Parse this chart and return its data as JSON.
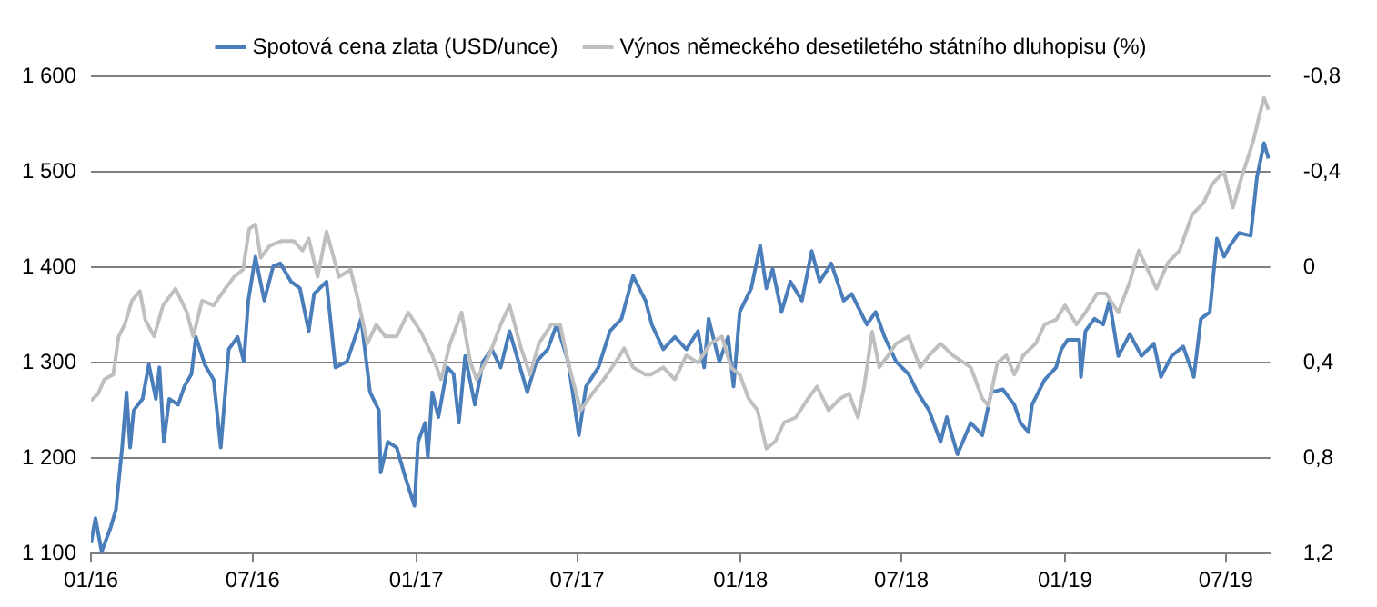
{
  "chart_data": {
    "type": "line",
    "legend": "top",
    "grid": "y",
    "xlim": [
      "2016-01-01",
      "2019-08-20"
    ],
    "xticks": [
      {
        "value": "2016-01-01",
        "label": "01/16"
      },
      {
        "value": "2016-07-01",
        "label": "07/16"
      },
      {
        "value": "2017-01-01",
        "label": "01/17"
      },
      {
        "value": "2017-07-01",
        "label": "07/17"
      },
      {
        "value": "2018-01-01",
        "label": "01/18"
      },
      {
        "value": "2018-07-01",
        "label": "07/18"
      },
      {
        "value": "2019-01-01",
        "label": "01/19"
      },
      {
        "value": "2019-07-01",
        "label": "07/19"
      }
    ],
    "ylim": [
      1100,
      1600
    ],
    "yticks": [
      {
        "value": 1100,
        "label": "1 100"
      },
      {
        "value": 1200,
        "label": "1 200"
      },
      {
        "value": 1300,
        "label": "1 300"
      },
      {
        "value": 1400,
        "label": "1 400"
      },
      {
        "value": 1500,
        "label": "1 500"
      },
      {
        "value": 1600,
        "label": "1 600"
      }
    ],
    "y2lim": [
      1.2,
      -0.8
    ],
    "y2ticks": [
      {
        "value": -0.8,
        "label": "-0,8"
      },
      {
        "value": -0.4,
        "label": "-0,4"
      },
      0,
      {
        "value": 0.4,
        "label": "0,4"
      },
      {
        "value": 0.8,
        "label": "0,8"
      },
      {
        "value": 1.2,
        "label": "1,2"
      }
    ],
    "series": [
      {
        "name": "Spotová cena zlata (USD/unce)",
        "color": "#4a7ebb",
        "x": [
          "2016-01-01",
          "2016-01-06",
          "2016-01-13",
          "2016-01-23",
          "2016-01-29",
          "2016-02-05",
          "2016-02-10",
          "2016-02-14",
          "2016-02-18",
          "2016-02-28",
          "2016-03-06",
          "2016-03-14",
          "2016-03-18",
          "2016-03-23",
          "2016-03-29",
          "2016-04-08",
          "2016-04-15",
          "2016-04-23",
          "2016-04-28",
          "2016-05-08",
          "2016-05-18",
          "2016-05-26",
          "2016-06-04",
          "2016-06-14",
          "2016-06-21",
          "2016-06-26",
          "2016-07-04",
          "2016-07-14",
          "2016-07-24",
          "2016-08-01",
          "2016-08-13",
          "2016-08-23",
          "2016-09-02",
          "2016-09-08",
          "2016-09-22",
          "2016-10-02",
          "2016-10-15",
          "2016-10-31",
          "2016-11-10",
          "2016-11-20",
          "2016-11-22",
          "2016-11-30",
          "2016-12-10",
          "2016-12-20",
          "2016-12-30",
          "2017-01-03",
          "2017-01-11",
          "2017-01-14",
          "2017-01-19",
          "2017-01-26",
          "2017-02-05",
          "2017-02-12",
          "2017-02-18",
          "2017-02-25",
          "2017-03-08",
          "2017-03-17",
          "2017-03-27",
          "2017-04-06",
          "2017-04-16",
          "2017-04-26",
          "2017-05-06",
          "2017-05-16",
          "2017-05-29",
          "2017-06-08",
          "2017-06-21",
          "2017-07-03",
          "2017-07-11",
          "2017-07-25",
          "2017-08-07",
          "2017-08-20",
          "2017-09-02",
          "2017-09-16",
          "2017-09-23",
          "2017-10-06",
          "2017-10-19",
          "2017-11-01",
          "2017-11-14",
          "2017-11-21",
          "2017-11-26",
          "2017-12-08",
          "2017-12-18",
          "2017-12-24",
          "2017-12-31",
          "2018-01-13",
          "2018-01-23",
          "2018-01-30",
          "2018-02-06",
          "2018-02-16",
          "2018-02-26",
          "2018-03-11",
          "2018-03-22",
          "2018-03-31",
          "2018-04-13",
          "2018-04-27",
          "2018-05-06",
          "2018-05-23",
          "2018-06-02",
          "2018-06-12",
          "2018-06-25",
          "2018-07-09",
          "2018-07-19",
          "2018-08-01",
          "2018-08-14",
          "2018-08-21",
          "2018-09-02",
          "2018-09-17",
          "2018-09-30",
          "2018-10-10",
          "2018-10-23",
          "2018-11-05",
          "2018-11-12",
          "2018-11-21",
          "2018-11-25",
          "2018-12-09",
          "2018-12-22",
          "2018-12-28",
          "2019-01-04",
          "2019-01-17",
          "2019-01-19",
          "2019-01-24",
          "2019-02-03",
          "2019-02-13",
          "2019-02-20",
          "2019-03-02",
          "2019-03-15",
          "2019-03-28",
          "2019-04-11",
          "2019-04-19",
          "2019-05-01",
          "2019-05-14",
          "2019-05-26",
          "2019-06-03",
          "2019-06-13",
          "2019-06-21",
          "2019-06-29",
          "2019-07-06",
          "2019-07-16",
          "2019-07-29",
          "2019-08-05",
          "2019-08-13",
          "2019-08-18"
        ],
        "values": [
          1111,
          1137,
          1102,
          1127,
          1146,
          1211,
          1269,
          1211,
          1250,
          1262,
          1298,
          1262,
          1295,
          1217,
          1262,
          1256,
          1275,
          1288,
          1327,
          1298,
          1282,
          1211,
          1314,
          1327,
          1301,
          1365,
          1411,
          1365,
          1401,
          1404,
          1385,
          1378,
          1333,
          1372,
          1385,
          1295,
          1301,
          1346,
          1269,
          1250,
          1185,
          1217,
          1211,
          1179,
          1150,
          1217,
          1237,
          1201,
          1269,
          1243,
          1295,
          1288,
          1237,
          1307,
          1256,
          1301,
          1314,
          1295,
          1333,
          1301,
          1269,
          1301,
          1314,
          1340,
          1301,
          1224,
          1275,
          1295,
          1333,
          1346,
          1391,
          1365,
          1340,
          1314,
          1327,
          1314,
          1333,
          1295,
          1346,
          1301,
          1327,
          1275,
          1353,
          1378,
          1423,
          1378,
          1398,
          1353,
          1385,
          1365,
          1417,
          1385,
          1404,
          1365,
          1372,
          1340,
          1353,
          1327,
          1301,
          1288,
          1269,
          1250,
          1217,
          1243,
          1204,
          1237,
          1224,
          1269,
          1272,
          1256,
          1237,
          1227,
          1256,
          1282,
          1295,
          1314,
          1324,
          1324,
          1285,
          1333,
          1346,
          1340,
          1365,
          1307,
          1330,
          1307,
          1320,
          1285,
          1307,
          1317,
          1285,
          1346,
          1353,
          1430,
          1411,
          1423,
          1436,
          1433,
          1494,
          1530,
          1514
        ]
      },
      {
        "name": "Výnos německého desetiletého státního dluhopisu (%)",
        "color": "#bfbfbf",
        "axis": "y2",
        "x": [
          "2016-01-01",
          "2016-01-09",
          "2016-01-16",
          "2016-01-26",
          "2016-02-01",
          "2016-02-08",
          "2016-02-16",
          "2016-02-25",
          "2016-03-02",
          "2016-03-12",
          "2016-03-22",
          "2016-04-05",
          "2016-04-18",
          "2016-04-25",
          "2016-05-05",
          "2016-05-18",
          "2016-05-31",
          "2016-06-10",
          "2016-06-20",
          "2016-06-27",
          "2016-07-04",
          "2016-07-10",
          "2016-07-20",
          "2016-08-03",
          "2016-08-16",
          "2016-08-26",
          "2016-09-02",
          "2016-09-12",
          "2016-09-22",
          "2016-10-06",
          "2016-10-19",
          "2016-10-29",
          "2016-11-07",
          "2016-11-17",
          "2016-11-27",
          "2016-12-10",
          "2016-12-23",
          "2017-01-06",
          "2017-01-19",
          "2017-01-29",
          "2017-02-08",
          "2017-02-21",
          "2017-03-03",
          "2017-03-10",
          "2017-03-24",
          "2017-04-06",
          "2017-04-16",
          "2017-04-29",
          "2017-05-09",
          "2017-05-19",
          "2017-06-02",
          "2017-06-12",
          "2017-06-21",
          "2017-07-05",
          "2017-07-18",
          "2017-07-31",
          "2017-08-13",
          "2017-08-23",
          "2017-09-02",
          "2017-09-16",
          "2017-09-22",
          "2017-10-06",
          "2017-10-19",
          "2017-11-01",
          "2017-11-14",
          "2017-11-28",
          "2017-12-11",
          "2017-12-21",
          "2017-12-31",
          "2018-01-10",
          "2018-01-20",
          "2018-01-30",
          "2018-02-09",
          "2018-02-19",
          "2018-03-04",
          "2018-03-18",
          "2018-03-28",
          "2018-04-10",
          "2018-04-23",
          "2018-05-03",
          "2018-05-13",
          "2018-05-20",
          "2018-05-29",
          "2018-06-06",
          "2018-06-16",
          "2018-06-25",
          "2018-07-09",
          "2018-07-22",
          "2018-08-01",
          "2018-08-14",
          "2018-08-28",
          "2018-09-17",
          "2018-09-30",
          "2018-10-07",
          "2018-10-17",
          "2018-10-27",
          "2018-11-05",
          "2018-11-15",
          "2018-11-29",
          "2018-12-09",
          "2018-12-22",
          "2019-01-01",
          "2019-01-14",
          "2019-01-24",
          "2019-02-06",
          "2019-02-16",
          "2019-03-02",
          "2019-03-15",
          "2019-03-25",
          "2019-04-04",
          "2019-04-14",
          "2019-04-27",
          "2019-05-10",
          "2019-05-24",
          "2019-06-06",
          "2019-06-16",
          "2019-06-29",
          "2019-07-09",
          "2019-07-19",
          "2019-08-01",
          "2019-08-08",
          "2019-08-13",
          "2019-08-18"
        ],
        "values": [
          0.56,
          0.53,
          0.47,
          0.45,
          0.29,
          0.24,
          0.14,
          0.1,
          0.22,
          0.29,
          0.16,
          0.09,
          0.19,
          0.29,
          0.14,
          0.16,
          0.09,
          0.04,
          0.01,
          -0.16,
          -0.18,
          -0.04,
          -0.09,
          -0.11,
          -0.11,
          -0.07,
          -0.12,
          0.04,
          -0.15,
          0.04,
          0.01,
          0.16,
          0.32,
          0.24,
          0.29,
          0.29,
          0.19,
          0.27,
          0.37,
          0.47,
          0.32,
          0.19,
          0.4,
          0.47,
          0.37,
          0.24,
          0.16,
          0.34,
          0.45,
          0.32,
          0.24,
          0.24,
          0.4,
          0.6,
          0.53,
          0.47,
          0.4,
          0.34,
          0.42,
          0.45,
          0.45,
          0.42,
          0.47,
          0.37,
          0.4,
          0.32,
          0.29,
          0.42,
          0.45,
          0.55,
          0.6,
          0.76,
          0.73,
          0.65,
          0.63,
          0.55,
          0.5,
          0.6,
          0.55,
          0.53,
          0.63,
          0.5,
          0.27,
          0.42,
          0.37,
          0.32,
          0.29,
          0.42,
          0.37,
          0.32,
          0.37,
          0.42,
          0.55,
          0.58,
          0.4,
          0.37,
          0.45,
          0.37,
          0.32,
          0.24,
          0.22,
          0.16,
          0.24,
          0.19,
          0.11,
          0.11,
          0.19,
          0.06,
          -0.07,
          0.01,
          0.09,
          -0.02,
          -0.07,
          -0.22,
          -0.27,
          -0.35,
          -0.4,
          -0.25,
          -0.38,
          -0.53,
          -0.64,
          -0.71,
          -0.66
        ]
      }
    ]
  }
}
